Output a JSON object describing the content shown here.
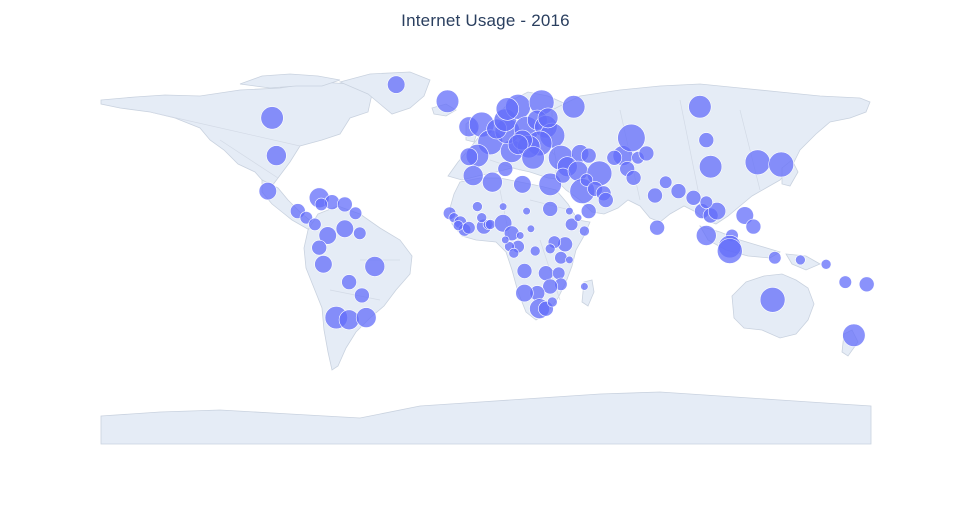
{
  "chart_data": {
    "type": "scatter",
    "title": "Internet Usage - 2016",
    "projection": "equirectangular",
    "marker_color": "#636efa",
    "land_color": "#e5ecf6",
    "lon_range": [
      -180,
      180
    ],
    "lat_range": [
      -90,
      84
    ],
    "points": [
      {
        "lon": -42,
        "lat": 72,
        "v": 7
      },
      {
        "lon": -18,
        "lat": 64.5,
        "v": 9
      },
      {
        "lon": -100,
        "lat": 57,
        "v": 9
      },
      {
        "lon": -98,
        "lat": 40,
        "v": 8
      },
      {
        "lon": -102,
        "lat": 24,
        "v": 7
      },
      {
        "lon": -88,
        "lat": 15,
        "v": 6
      },
      {
        "lon": -84,
        "lat": 12,
        "v": 5
      },
      {
        "lon": -78,
        "lat": 21,
        "v": 8
      },
      {
        "lon": -72,
        "lat": 19,
        "v": 6
      },
      {
        "lon": -77,
        "lat": 18,
        "v": 5
      },
      {
        "lon": -66,
        "lat": 18,
        "v": 6
      },
      {
        "lon": -61,
        "lat": 14,
        "v": 5
      },
      {
        "lon": -66,
        "lat": 7,
        "v": 7
      },
      {
        "lon": -74,
        "lat": 4,
        "v": 7
      },
      {
        "lon": -80,
        "lat": 9,
        "v": 5
      },
      {
        "lon": -78,
        "lat": -1.5,
        "v": 6
      },
      {
        "lon": -59,
        "lat": 5,
        "v": 5
      },
      {
        "lon": -76,
        "lat": -9,
        "v": 7
      },
      {
        "lon": -64,
        "lat": -17,
        "v": 6
      },
      {
        "lon": -52,
        "lat": -10,
        "v": 8
      },
      {
        "lon": -58,
        "lat": -23,
        "v": 6
      },
      {
        "lon": -70,
        "lat": -33,
        "v": 9
      },
      {
        "lon": -64,
        "lat": -34,
        "v": 8
      },
      {
        "lon": -56,
        "lat": -33,
        "v": 8
      },
      {
        "lon": -8,
        "lat": 53,
        "v": 8
      },
      {
        "lon": -2,
        "lat": 54,
        "v": 10
      },
      {
        "lon": 2,
        "lat": 46,
        "v": 10
      },
      {
        "lon": -4,
        "lat": 40,
        "v": 9
      },
      {
        "lon": -8,
        "lat": 39.5,
        "v": 7
      },
      {
        "lon": 12,
        "lat": 42,
        "v": 9
      },
      {
        "lon": 10,
        "lat": 51,
        "v": 10
      },
      {
        "lon": 5,
        "lat": 52,
        "v": 8
      },
      {
        "lon": 9,
        "lat": 56,
        "v": 9
      },
      {
        "lon": 15,
        "lat": 62,
        "v": 10
      },
      {
        "lon": 26,
        "lat": 64,
        "v": 10
      },
      {
        "lon": 10,
        "lat": 61,
        "v": 9
      },
      {
        "lon": 19,
        "lat": 52,
        "v": 10
      },
      {
        "lon": 24,
        "lat": 56,
        "v": 8
      },
      {
        "lon": 28,
        "lat": 53,
        "v": 9
      },
      {
        "lon": 31,
        "lat": 49,
        "v": 10
      },
      {
        "lon": 25,
        "lat": 45.5,
        "v": 10
      },
      {
        "lon": 20,
        "lat": 44,
        "v": 9
      },
      {
        "lon": 17,
        "lat": 47,
        "v": 8
      },
      {
        "lon": 15,
        "lat": 45,
        "v": 8
      },
      {
        "lon": 22,
        "lat": 39,
        "v": 9
      },
      {
        "lon": 35,
        "lat": 39,
        "v": 10
      },
      {
        "lon": 41,
        "lat": 62,
        "v": 9
      },
      {
        "lon": 29,
        "lat": 57,
        "v": 8
      },
      {
        "lon": 44,
        "lat": 41,
        "v": 7
      },
      {
        "lon": 48,
        "lat": 40,
        "v": 6
      },
      {
        "lon": 3,
        "lat": 28,
        "v": 8
      },
      {
        "lon": 9,
        "lat": 34,
        "v": 6
      },
      {
        "lon": -6,
        "lat": 31,
        "v": 8
      },
      {
        "lon": 17,
        "lat": 27,
        "v": 7
      },
      {
        "lon": 30,
        "lat": 27,
        "v": 9
      },
      {
        "lon": 38,
        "lat": 35,
        "v": 8
      },
      {
        "lon": 36,
        "lat": 31,
        "v": 6
      },
      {
        "lon": 43,
        "lat": 33,
        "v": 8
      },
      {
        "lon": 45,
        "lat": 24,
        "v": 10
      },
      {
        "lon": 53,
        "lat": 32,
        "v": 10
      },
      {
        "lon": 47,
        "lat": 29,
        "v": 5
      },
      {
        "lon": 51,
        "lat": 25,
        "v": 6
      },
      {
        "lon": 55,
        "lat": 23,
        "v": 6
      },
      {
        "lon": 56,
        "lat": 20,
        "v": 6
      },
      {
        "lon": 48,
        "lat": 15,
        "v": 6
      },
      {
        "lon": 64,
        "lat": 40,
        "v": 8
      },
      {
        "lon": 68,
        "lat": 48,
        "v": 11
      },
      {
        "lon": 60,
        "lat": 39,
        "v": 6
      },
      {
        "lon": 71,
        "lat": 39,
        "v": 5
      },
      {
        "lon": 75,
        "lat": 41,
        "v": 6
      },
      {
        "lon": 66,
        "lat": 34,
        "v": 6
      },
      {
        "lon": 69,
        "lat": 30,
        "v": 6
      },
      {
        "lon": 84,
        "lat": 28,
        "v": 5
      },
      {
        "lon": 90,
        "lat": 24,
        "v": 6
      },
      {
        "lon": 79,
        "lat": 22,
        "v": 6
      },
      {
        "lon": 80,
        "lat": 7.5,
        "v": 6
      },
      {
        "lon": 97,
        "lat": 21,
        "v": 6
      },
      {
        "lon": 101,
        "lat": 15,
        "v": 6
      },
      {
        "lon": 105,
        "lat": 13,
        "v": 6
      },
      {
        "lon": 108,
        "lat": 15,
        "v": 7
      },
      {
        "lon": 103,
        "lat": 19,
        "v": 5
      },
      {
        "lon": 103,
        "lat": 4,
        "v": 8
      },
      {
        "lon": 115,
        "lat": 4,
        "v": 5
      },
      {
        "lon": 114,
        "lat": -1,
        "v": 9
      },
      {
        "lon": 114,
        "lat": -3,
        "v": 10
      },
      {
        "lon": 121,
        "lat": 13,
        "v": 7
      },
      {
        "lon": 105,
        "lat": 35,
        "v": 9
      },
      {
        "lon": 103,
        "lat": 47,
        "v": 6
      },
      {
        "lon": 100,
        "lat": 62,
        "v": 9
      },
      {
        "lon": 127,
        "lat": 37,
        "v": 10
      },
      {
        "lon": 138,
        "lat": 36,
        "v": 10
      },
      {
        "lon": 125,
        "lat": 8,
        "v": 6
      },
      {
        "lon": 135,
        "lat": -6,
        "v": 5
      },
      {
        "lon": 147,
        "lat": -7,
        "v": 4
      },
      {
        "lon": 159,
        "lat": -9,
        "v": 4
      },
      {
        "lon": 134,
        "lat": -25,
        "v": 10
      },
      {
        "lon": 168,
        "lat": -17,
        "v": 5
      },
      {
        "lon": 178,
        "lat": -18,
        "v": 6
      },
      {
        "lon": 172,
        "lat": -41,
        "v": 9
      },
      {
        "lon": -17,
        "lat": 14,
        "v": 5
      },
      {
        "lon": -15,
        "lat": 12,
        "v": 4
      },
      {
        "lon": -12,
        "lat": 10,
        "v": 5
      },
      {
        "lon": -10,
        "lat": 6.5,
        "v": 5
      },
      {
        "lon": -13,
        "lat": 8.5,
        "v": 4
      },
      {
        "lon": -8,
        "lat": 7.5,
        "v": 5
      },
      {
        "lon": -1,
        "lat": 8,
        "v": 6
      },
      {
        "lon": 1,
        "lat": 9,
        "v": 4
      },
      {
        "lon": 2,
        "lat": 9,
        "v": 4
      },
      {
        "lon": 8,
        "lat": 9.5,
        "v": 7
      },
      {
        "lon": -2,
        "lat": 12,
        "v": 4
      },
      {
        "lon": -4,
        "lat": 17,
        "v": 4
      },
      {
        "lon": 8,
        "lat": 17,
        "v": 3
      },
      {
        "lon": 19,
        "lat": 15,
        "v": 3
      },
      {
        "lon": 30,
        "lat": 16,
        "v": 6
      },
      {
        "lon": 12,
        "lat": 5,
        "v": 6
      },
      {
        "lon": 21,
        "lat": 7,
        "v": 3
      },
      {
        "lon": 39,
        "lat": 15,
        "v": 3
      },
      {
        "lon": 40,
        "lat": 9,
        "v": 5
      },
      {
        "lon": 43,
        "lat": 12,
        "v": 3
      },
      {
        "lon": 46,
        "lat": 6,
        "v": 4
      },
      {
        "lon": 37,
        "lat": 0,
        "v": 6
      },
      {
        "lon": 32,
        "lat": 1,
        "v": 5
      },
      {
        "lon": 30,
        "lat": -2,
        "v": 4
      },
      {
        "lon": 35,
        "lat": -6,
        "v": 5
      },
      {
        "lon": 23,
        "lat": -3,
        "v": 4
      },
      {
        "lon": 15,
        "lat": -1,
        "v": 5
      },
      {
        "lon": 11,
        "lat": -1,
        "v": 4
      },
      {
        "lon": 13,
        "lat": -4,
        "v": 4
      },
      {
        "lon": 18,
        "lat": -12,
        "v": 6
      },
      {
        "lon": 28,
        "lat": -13,
        "v": 6
      },
      {
        "lon": 34,
        "lat": -13,
        "v": 5
      },
      {
        "lon": 35,
        "lat": -18,
        "v": 5
      },
      {
        "lon": 30,
        "lat": -19,
        "v": 6
      },
      {
        "lon": 24,
        "lat": -22,
        "v": 6
      },
      {
        "lon": 18,
        "lat": -22,
        "v": 7
      },
      {
        "lon": 25,
        "lat": -29,
        "v": 8
      },
      {
        "lon": 28,
        "lat": -29,
        "v": 6
      },
      {
        "lon": 31,
        "lat": -26,
        "v": 4
      },
      {
        "lon": 46,
        "lat": -19,
        "v": 3
      },
      {
        "lon": 39,
        "lat": -7,
        "v": 3
      },
      {
        "lon": 9,
        "lat": 2,
        "v": 3
      },
      {
        "lon": 16,
        "lat": 4,
        "v": 3
      }
    ]
  }
}
